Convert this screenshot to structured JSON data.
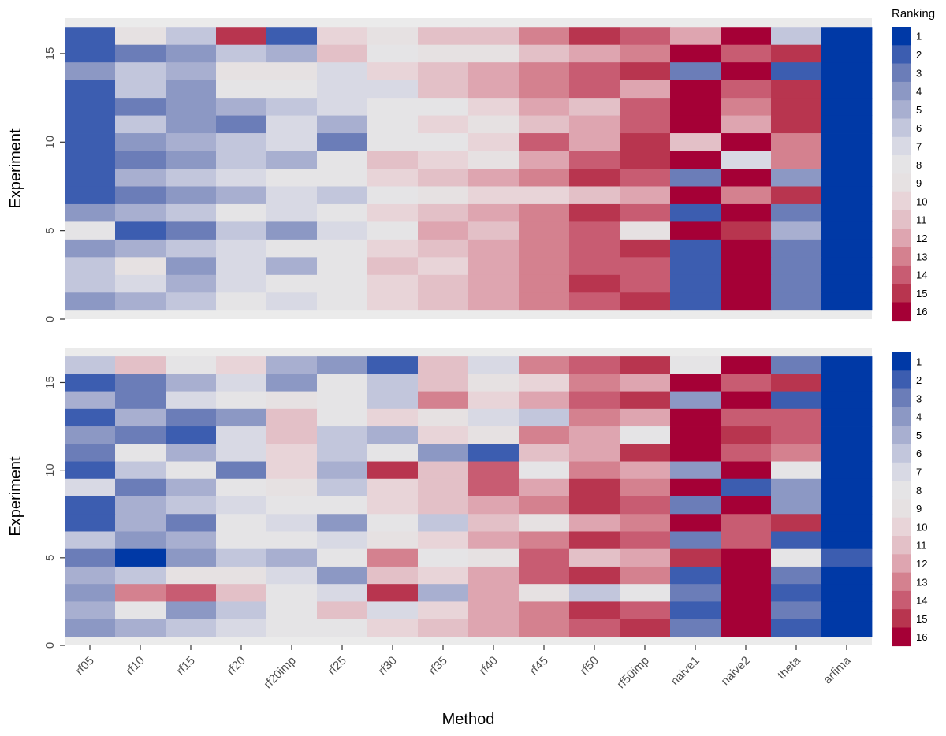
{
  "chart_data": {
    "type": "heatmap",
    "xlabel": "Method",
    "ylabel": "Experiment",
    "categories": [
      "rf05",
      "rf10",
      "rf15",
      "rf20",
      "rf20imp",
      "rf25",
      "rf30",
      "rf35",
      "rf40",
      "rf45",
      "rf50",
      "rf50imp",
      "naive1",
      "naive2",
      "theta",
      "arfima"
    ],
    "y_ticks": [
      0,
      5,
      10,
      15
    ],
    "ylim": [
      0,
      17
    ],
    "legend": {
      "title": "Ranking",
      "labels": [
        "1",
        "2",
        "3",
        "4",
        "5",
        "6",
        "7",
        "8",
        "9",
        "10",
        "11",
        "12",
        "13",
        "14",
        "15",
        "16"
      ],
      "colors": [
        "#0039a6",
        "#3c5db0",
        "#6b7db8",
        "#8c98c4",
        "#a8afd0",
        "#c2c6dc",
        "#d8d9e4",
        "#e5e4e6",
        "#e6e1e2",
        "#e8d4d8",
        "#e3c0c7",
        "#dea5b0",
        "#d4818f",
        "#c85c72",
        "#b8354f",
        "#a50036"
      ]
    },
    "panels": [
      {
        "name": "top",
        "rows": [
          [
            2,
            9,
            6,
            15,
            2,
            10,
            9,
            11,
            11,
            13,
            15,
            14,
            12,
            16,
            6,
            1
          ],
          [
            2,
            3,
            4,
            6,
            5,
            11,
            8,
            9,
            9,
            11,
            12,
            13,
            16,
            14,
            15,
            1
          ],
          [
            4,
            6,
            5,
            9,
            9,
            7,
            10,
            11,
            12,
            13,
            14,
            15,
            3,
            16,
            2,
            1
          ],
          [
            2,
            6,
            4,
            8,
            8,
            7,
            7,
            11,
            12,
            13,
            14,
            12,
            16,
            14,
            15,
            1
          ],
          [
            2,
            3,
            4,
            5,
            6,
            7,
            8,
            8,
            10,
            12,
            11,
            14,
            16,
            13,
            15,
            1
          ],
          [
            2,
            6,
            4,
            3,
            7,
            5,
            8,
            10,
            9,
            11,
            12,
            14,
            16,
            12,
            15,
            1
          ],
          [
            2,
            4,
            5,
            6,
            7,
            3,
            8,
            8,
            10,
            14,
            12,
            15,
            11,
            16,
            13,
            1
          ],
          [
            2,
            3,
            4,
            6,
            5,
            8,
            11,
            10,
            9,
            12,
            14,
            15,
            16,
            7,
            13,
            1
          ],
          [
            2,
            5,
            6,
            7,
            8,
            8,
            10,
            11,
            12,
            13,
            15,
            14,
            3,
            16,
            4,
            1
          ],
          [
            2,
            3,
            4,
            5,
            7,
            6,
            8,
            9,
            10,
            10,
            11,
            12,
            16,
            13,
            15,
            1
          ],
          [
            4,
            5,
            6,
            8,
            7,
            8,
            10,
            11,
            12,
            13,
            15,
            14,
            2,
            16,
            3,
            1
          ],
          [
            8,
            2,
            3,
            6,
            4,
            7,
            8,
            12,
            11,
            13,
            14,
            9,
            16,
            15,
            5,
            1
          ],
          [
            4,
            5,
            6,
            7,
            8,
            8,
            10,
            11,
            12,
            13,
            14,
            15,
            2,
            16,
            3,
            1
          ],
          [
            6,
            9,
            4,
            7,
            5,
            8,
            11,
            10,
            12,
            13,
            14,
            14,
            2,
            16,
            3,
            1
          ],
          [
            6,
            7,
            5,
            7,
            8,
            8,
            10,
            11,
            12,
            13,
            15,
            14,
            2,
            16,
            3,
            1
          ],
          [
            4,
            5,
            6,
            8,
            7,
            8,
            10,
            11,
            12,
            13,
            14,
            15,
            2,
            16,
            3,
            1
          ]
        ]
      },
      {
        "name": "bottom",
        "rows": [
          [
            6,
            11,
            8,
            10,
            5,
            4,
            2,
            11,
            7,
            13,
            14,
            15,
            8,
            16,
            3,
            1
          ],
          [
            2,
            3,
            5,
            7,
            4,
            8,
            6,
            11,
            9,
            10,
            13,
            12,
            16,
            14,
            15,
            1
          ],
          [
            5,
            3,
            7,
            8,
            9,
            8,
            6,
            13,
            10,
            12,
            14,
            15,
            4,
            16,
            2,
            1
          ],
          [
            2,
            5,
            3,
            4,
            11,
            8,
            10,
            9,
            7,
            6,
            13,
            12,
            16,
            14,
            14,
            1
          ],
          [
            4,
            3,
            2,
            7,
            11,
            6,
            5,
            10,
            9,
            13,
            12,
            8,
            16,
            15,
            14,
            1
          ],
          [
            3,
            8,
            5,
            7,
            10,
            6,
            8,
            4,
            2,
            11,
            12,
            15,
            16,
            14,
            13,
            1
          ],
          [
            2,
            6,
            8,
            3,
            10,
            5,
            15,
            11,
            14,
            8,
            13,
            12,
            4,
            16,
            8,
            1
          ],
          [
            7,
            3,
            5,
            8,
            9,
            6,
            10,
            11,
            14,
            12,
            15,
            13,
            16,
            2,
            4,
            1
          ],
          [
            2,
            5,
            6,
            7,
            8,
            8,
            10,
            11,
            12,
            13,
            15,
            14,
            3,
            16,
            4,
            1
          ],
          [
            2,
            5,
            3,
            8,
            7,
            4,
            8,
            6,
            11,
            9,
            12,
            13,
            16,
            14,
            15,
            1
          ],
          [
            6,
            4,
            5,
            8,
            8,
            7,
            9,
            10,
            12,
            13,
            15,
            14,
            3,
            14,
            2,
            1
          ],
          [
            3,
            1,
            4,
            6,
            5,
            8,
            13,
            8,
            9,
            14,
            11,
            12,
            15,
            16,
            8,
            2
          ],
          [
            5,
            6,
            9,
            9,
            7,
            4,
            11,
            10,
            12,
            14,
            15,
            13,
            2,
            16,
            3,
            1
          ],
          [
            4,
            13,
            14,
            11,
            8,
            7,
            15,
            5,
            12,
            9,
            6,
            8,
            3,
            16,
            2,
            1
          ],
          [
            5,
            8,
            4,
            6,
            8,
            11,
            7,
            10,
            12,
            13,
            15,
            14,
            2,
            16,
            3,
            1
          ],
          [
            4,
            5,
            6,
            7,
            8,
            8,
            10,
            11,
            12,
            13,
            14,
            15,
            3,
            16,
            2,
            1
          ]
        ]
      }
    ]
  }
}
